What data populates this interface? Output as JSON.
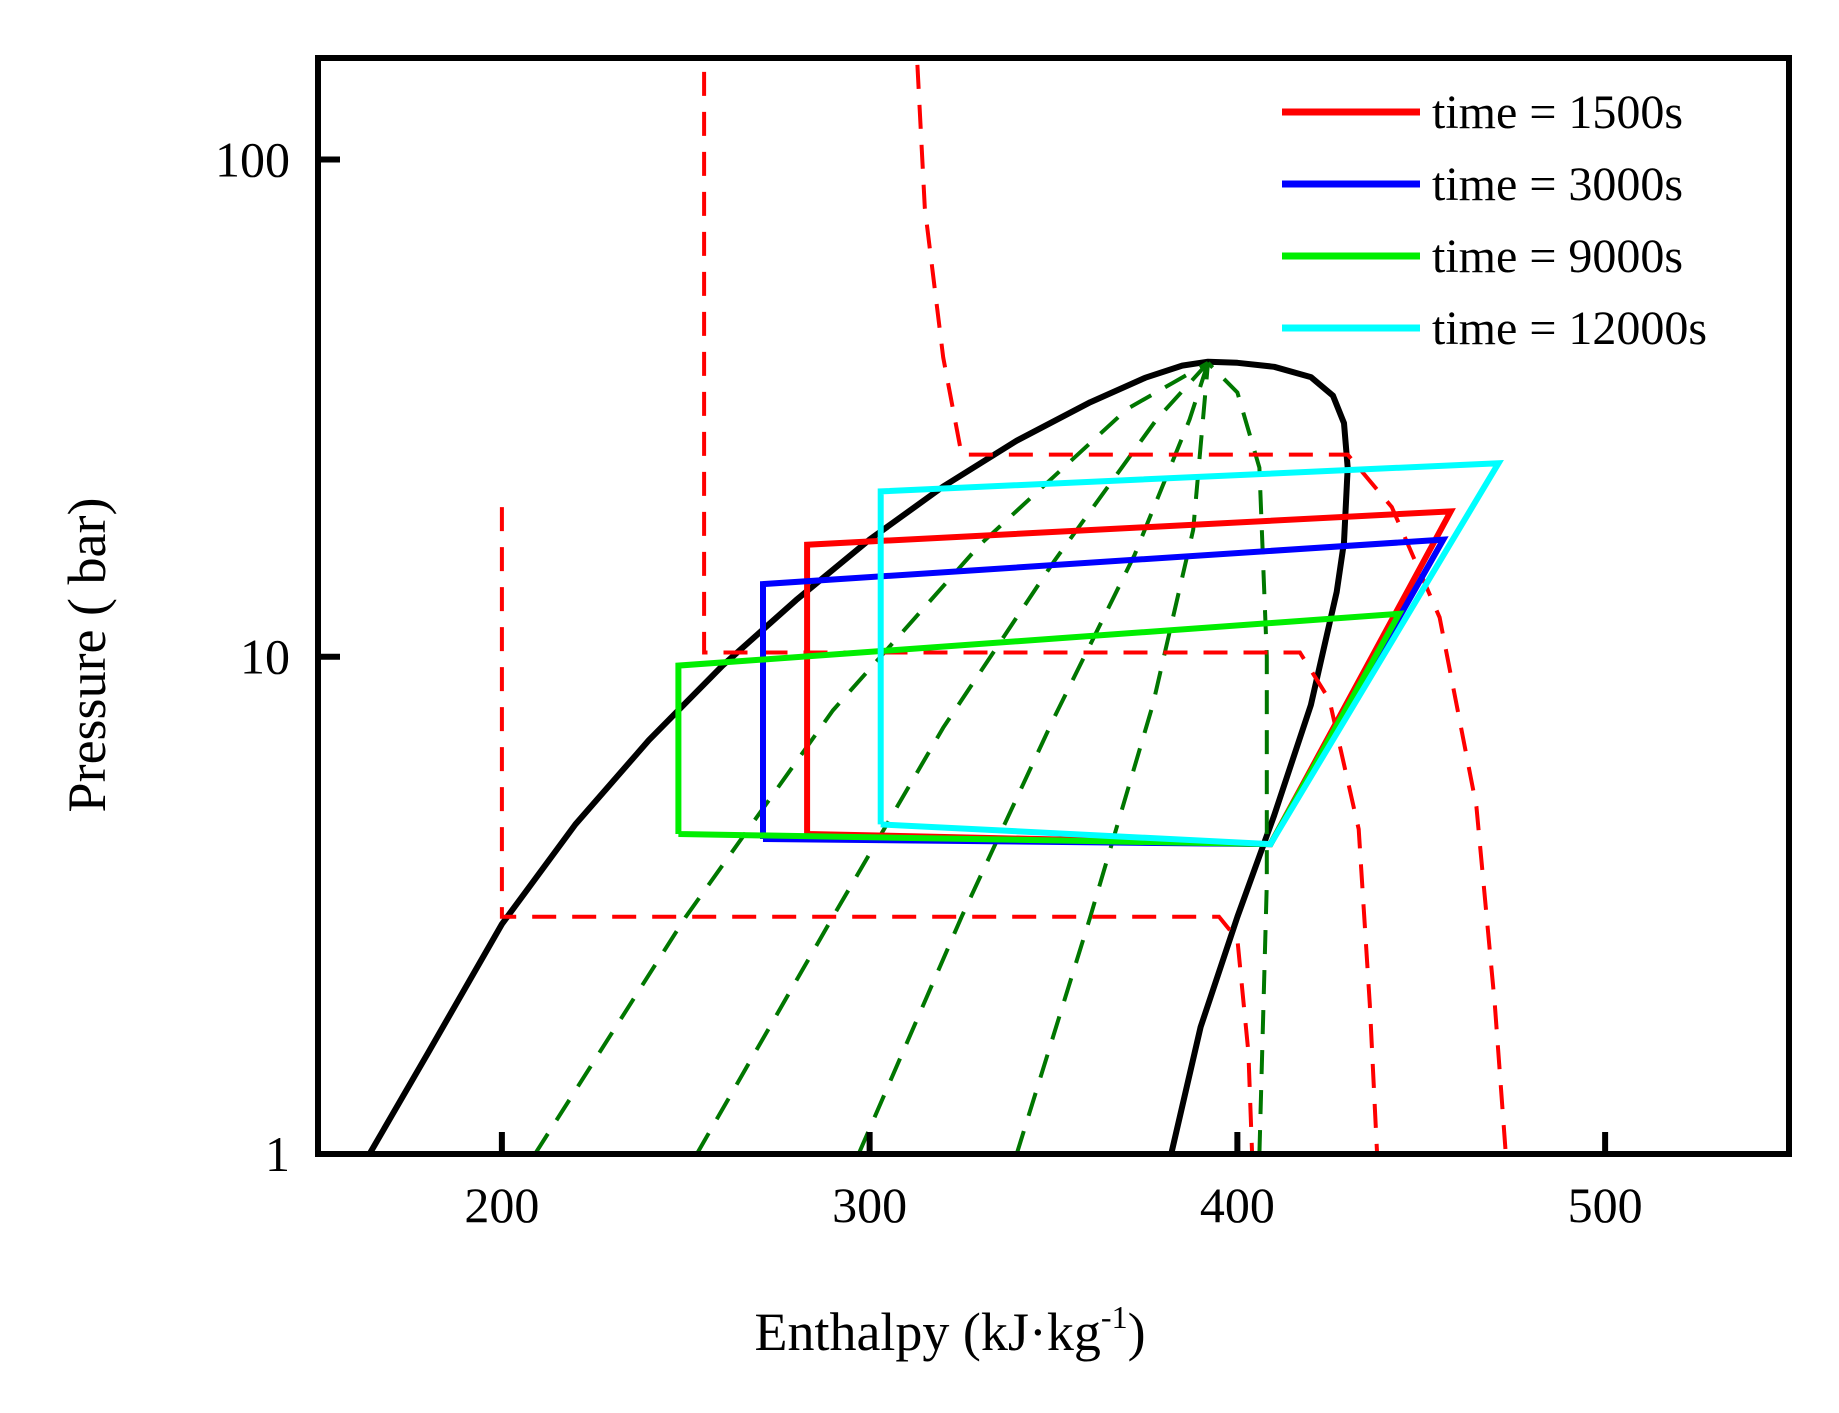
{
  "chart_data": {
    "type": "line",
    "xlabel": "Enthalpy (kJ·kg",
    "xlabel_sup": "-1",
    "xlabel_close": ")",
    "ylabel": "Pressure ( bar)",
    "xlim": [
      150,
      550
    ],
    "ylim": [
      1,
      160
    ],
    "yscale": "log",
    "xticks": [
      200,
      300,
      400,
      500
    ],
    "yticks": [
      1,
      10,
      100
    ],
    "xtick_labels": [
      "200",
      "300",
      "400",
      "500"
    ],
    "ytick_labels": [
      "1",
      "10",
      "100"
    ],
    "grid": false,
    "legend_position": "top-right",
    "series": [
      {
        "name": "time = 1500s",
        "color": "#ff0000",
        "x": [
          283,
          283,
          458,
          409,
          283
        ],
        "y": [
          4.4,
          16.8,
          19.6,
          4.2,
          4.4
        ]
      },
      {
        "name": "time = 3000s",
        "color": "#0000ff",
        "x": [
          271,
          271,
          456,
          409,
          271
        ],
        "y": [
          4.3,
          14.0,
          17.2,
          4.2,
          4.3
        ]
      },
      {
        "name": "time = 9000s",
        "color": "#00ee00",
        "x": [
          248,
          248,
          444,
          409,
          248
        ],
        "y": [
          4.4,
          9.6,
          12.2,
          4.2,
          4.4
        ]
      },
      {
        "name": "time = 12000s",
        "color": "#00ffff",
        "x": [
          303,
          303,
          471,
          409,
          303
        ],
        "y": [
          4.6,
          21.5,
          24.5,
          4.2,
          4.6
        ]
      }
    ],
    "saturation_dome": {
      "color": "#000000",
      "x": [
        164,
        180,
        200,
        220,
        240,
        260,
        280,
        300,
        320,
        340,
        360,
        375,
        385,
        392,
        400,
        410,
        420,
        426,
        429,
        430,
        429,
        427,
        420,
        410,
        400,
        390,
        382
      ],
      "y": [
        1,
        1.6,
        2.9,
        4.6,
        6.8,
        9.6,
        13.0,
        17.2,
        22.0,
        27.2,
        32.5,
        36.4,
        38.5,
        39.2,
        39.0,
        38.3,
        36.5,
        33.5,
        29.5,
        24.0,
        17.0,
        13.5,
        8.0,
        4.8,
        3.0,
        1.8,
        1
      ]
    },
    "isentropes": {
      "color": "#007700",
      "lines": [
        {
          "x": [
            209,
            250,
            290,
            330,
            370,
            392
          ],
          "y": [
            1,
            3.0,
            7.8,
            16.8,
            31.5,
            39.0
          ]
        },
        {
          "x": [
            253,
            290,
            320,
            350,
            378,
            392
          ],
          "y": [
            1,
            3.0,
            7.2,
            15.5,
            30.0,
            39.0
          ]
        },
        {
          "x": [
            297,
            325,
            350,
            372,
            387,
            392
          ],
          "y": [
            1,
            3.0,
            7.5,
            16.0,
            30.0,
            39.0
          ]
        },
        {
          "x": [
            340,
            360,
            377,
            388,
            392
          ],
          "y": [
            1,
            3.0,
            8.0,
            18.0,
            39.0
          ]
        },
        {
          "x": [
            406,
            408,
            408,
            406,
            400,
            392
          ],
          "y": [
            1,
            3.5,
            10.0,
            24.0,
            34.0,
            39.0
          ]
        }
      ]
    },
    "isotherms": {
      "color": "#ff0000",
      "lines": [
        {
          "x": [
            200,
            200,
            395,
            400,
            403,
            404
          ],
          "y": [
            20,
            3.0,
            3.0,
            2.7,
            1.6,
            1
          ]
        },
        {
          "x": [
            255,
            255,
            265,
            417,
            425,
            433,
            436,
            438
          ],
          "y": [
            150,
            10.2,
            10.2,
            10.2,
            8.2,
            4.5,
            2.0,
            1
          ]
        },
        {
          "x": [
            313,
            315,
            320,
            325,
            430,
            442,
            455,
            465,
            470,
            473
          ],
          "y": [
            155,
            80,
            40,
            25.5,
            25.5,
            20.0,
            12.0,
            5.0,
            2.0,
            1
          ]
        }
      ]
    }
  }
}
